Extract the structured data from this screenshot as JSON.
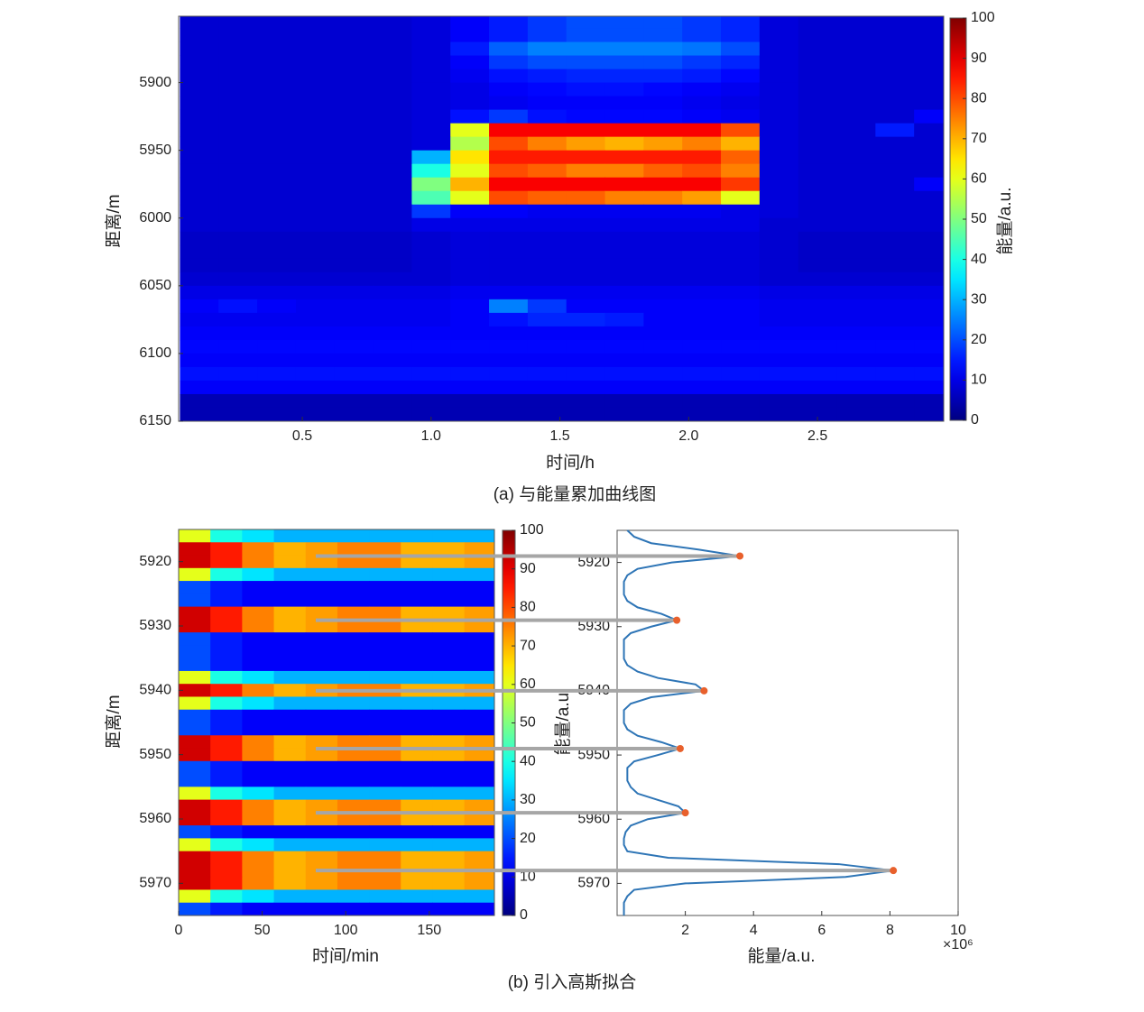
{
  "chart_data": [
    {
      "type": "heatmap",
      "caption": "(a) 与能量累加曲线图",
      "xlabel": "时间/h",
      "ylabel": "距离/m",
      "colormap": "jet",
      "xlim": [
        0.02,
        2.99
      ],
      "ylim": [
        5851,
        6150
      ],
      "y_reversed": true,
      "xticks": [
        0.5,
        {
          "value": 1,
          "label": "1.0"
        },
        1.5,
        {
          "value": 2,
          "label": "2.0"
        },
        2.5
      ],
      "yticks": [
        5900,
        5950,
        6000,
        6050,
        6100,
        6150
      ],
      "colorbar": {
        "label": "能量/a.u.",
        "lim": [
          0,
          100
        ],
        "ticks": [
          0,
          10,
          20,
          30,
          40,
          50,
          60,
          70,
          80,
          90,
          100
        ]
      },
      "x": [
        0.1,
        0.25,
        0.4,
        0.55,
        0.7,
        0.85,
        1.0,
        1.15,
        1.3,
        1.45,
        1.6,
        1.75,
        1.9,
        2.05,
        2.2,
        2.35,
        2.5,
        2.65,
        2.8,
        2.95
      ],
      "y": [
        5855,
        5865,
        5875,
        5885,
        5895,
        5905,
        5915,
        5925,
        5935,
        5945,
        5955,
        5965,
        5975,
        5985,
        5995,
        6005,
        6015,
        6025,
        6035,
        6045,
        6055,
        6065,
        6075,
        6085,
        6095,
        6105,
        6115,
        6125,
        6135,
        6145
      ],
      "z": [
        [
          8,
          8,
          8,
          8,
          8,
          8,
          9,
          12,
          15,
          18,
          20,
          20,
          20,
          18,
          16,
          9,
          8,
          8,
          8,
          8
        ],
        [
          8,
          8,
          8,
          8,
          8,
          8,
          9,
          12,
          15,
          18,
          20,
          20,
          20,
          18,
          16,
          9,
          8,
          8,
          8,
          8
        ],
        [
          8,
          8,
          8,
          8,
          8,
          8,
          9,
          15,
          22,
          25,
          25,
          25,
          25,
          24,
          20,
          9,
          8,
          8,
          8,
          8
        ],
        [
          8,
          8,
          8,
          8,
          8,
          8,
          9,
          12,
          18,
          20,
          20,
          20,
          20,
          18,
          16,
          9,
          8,
          8,
          8,
          8
        ],
        [
          8,
          8,
          8,
          8,
          8,
          8,
          9,
          11,
          14,
          15,
          16,
          16,
          16,
          15,
          13,
          9,
          8,
          8,
          8,
          8
        ],
        [
          8,
          8,
          8,
          8,
          8,
          8,
          9,
          10,
          12,
          13,
          14,
          14,
          13,
          12,
          11,
          9,
          8,
          8,
          8,
          8
        ],
        [
          8,
          8,
          8,
          8,
          8,
          8,
          9,
          10,
          11,
          12,
          12,
          12,
          12,
          11,
          10,
          9,
          8,
          8,
          8,
          8
        ],
        [
          8,
          8,
          8,
          8,
          8,
          8,
          9,
          14,
          18,
          14,
          13,
          13,
          13,
          12,
          11,
          9,
          8,
          8,
          8,
          12
        ],
        [
          8,
          8,
          8,
          8,
          8,
          8,
          9,
          60,
          88,
          88,
          88,
          88,
          88,
          88,
          80,
          9,
          8,
          8,
          15,
          8
        ],
        [
          8,
          8,
          8,
          8,
          8,
          8,
          9,
          55,
          80,
          75,
          72,
          70,
          72,
          75,
          70,
          9,
          8,
          8,
          8,
          8
        ],
        [
          8,
          8,
          8,
          8,
          8,
          8,
          30,
          65,
          85,
          85,
          85,
          85,
          85,
          85,
          78,
          9,
          8,
          8,
          8,
          8
        ],
        [
          8,
          8,
          8,
          8,
          8,
          8,
          40,
          60,
          80,
          78,
          75,
          75,
          78,
          80,
          75,
          9,
          8,
          8,
          8,
          8
        ],
        [
          8,
          8,
          8,
          8,
          8,
          8,
          50,
          70,
          88,
          88,
          88,
          88,
          88,
          88,
          82,
          9,
          8,
          8,
          8,
          12
        ],
        [
          8,
          8,
          8,
          8,
          8,
          8,
          45,
          60,
          80,
          78,
          78,
          75,
          75,
          72,
          60,
          9,
          8,
          8,
          8,
          8
        ],
        [
          8,
          8,
          8,
          8,
          8,
          8,
          18,
          12,
          12,
          11,
          11,
          11,
          11,
          11,
          10,
          9,
          8,
          8,
          8,
          8
        ],
        [
          8,
          8,
          8,
          8,
          8,
          8,
          10,
          10,
          10,
          10,
          10,
          10,
          10,
          10,
          10,
          8,
          8,
          8,
          8,
          8
        ],
        [
          7,
          7,
          7,
          7,
          7,
          7,
          8,
          9,
          9,
          9,
          9,
          9,
          9,
          9,
          9,
          8,
          7,
          7,
          7,
          7
        ],
        [
          7,
          7,
          7,
          7,
          7,
          7,
          8,
          9,
          9,
          9,
          9,
          9,
          9,
          9,
          9,
          8,
          7,
          7,
          7,
          7
        ],
        [
          7,
          7,
          7,
          7,
          7,
          7,
          8,
          9,
          9,
          9,
          9,
          9,
          9,
          9,
          9,
          8,
          7,
          7,
          7,
          7
        ],
        [
          8,
          8,
          8,
          8,
          8,
          8,
          8,
          9,
          9,
          9,
          9,
          9,
          9,
          9,
          9,
          8,
          8,
          8,
          8,
          8
        ],
        [
          10,
          10,
          10,
          10,
          10,
          10,
          10,
          11,
          11,
          11,
          11,
          11,
          11,
          11,
          11,
          10,
          10,
          10,
          10,
          10
        ],
        [
          12,
          14,
          12,
          11,
          11,
          11,
          11,
          12,
          25,
          18,
          12,
          12,
          12,
          12,
          12,
          11,
          11,
          11,
          11,
          11
        ],
        [
          11,
          11,
          11,
          11,
          11,
          11,
          11,
          12,
          14,
          16,
          16,
          15,
          12,
          12,
          12,
          11,
          11,
          11,
          11,
          11
        ],
        [
          12,
          12,
          12,
          12,
          12,
          12,
          12,
          12,
          12,
          12,
          12,
          12,
          12,
          12,
          12,
          12,
          12,
          12,
          12,
          12
        ],
        [
          13,
          13,
          13,
          13,
          13,
          13,
          13,
          13,
          13,
          13,
          13,
          13,
          13,
          13,
          13,
          13,
          13,
          13,
          13,
          13
        ],
        [
          12,
          12,
          12,
          12,
          12,
          12,
          12,
          12,
          12,
          12,
          12,
          12,
          12,
          12,
          12,
          12,
          12,
          12,
          12,
          12
        ],
        [
          14,
          14,
          14,
          14,
          14,
          14,
          14,
          14,
          14,
          14,
          14,
          14,
          14,
          14,
          14,
          14,
          14,
          14,
          14,
          14
        ],
        [
          12,
          12,
          12,
          12,
          12,
          12,
          12,
          12,
          12,
          12,
          12,
          12,
          12,
          12,
          12,
          12,
          12,
          12,
          12,
          12
        ],
        [
          5,
          5,
          5,
          5,
          5,
          5,
          5,
          5,
          5,
          5,
          5,
          5,
          5,
          5,
          5,
          5,
          5,
          5,
          5,
          5
        ],
        [
          5,
          5,
          5,
          5,
          5,
          5,
          5,
          5,
          5,
          5,
          5,
          5,
          5,
          5,
          5,
          5,
          5,
          5,
          5,
          5
        ]
      ]
    },
    {
      "type": "heatmap",
      "caption": "(b) 引入高斯拟合",
      "xlabel": "时间/min",
      "ylabel": "距离/m",
      "colormap": "jet",
      "xlim": [
        0,
        189
      ],
      "ylim": [
        5915,
        5975
      ],
      "y_reversed": true,
      "xticks": [
        0,
        50,
        100,
        150
      ],
      "yticks": [
        5920,
        5930,
        5940,
        5950,
        5960,
        5970
      ],
      "colorbar": {
        "label": "能量/a.u.",
        "lim": [
          0,
          100
        ],
        "ticks": [
          0,
          10,
          20,
          30,
          40,
          50,
          60,
          70,
          80,
          90,
          100
        ]
      },
      "x": [
        9.5,
        28.5,
        47.5,
        66.5,
        85.5,
        104.5,
        123.5,
        142.5,
        161.5,
        180.5
      ],
      "y": [
        5916,
        5918,
        5920,
        5922,
        5924,
        5926,
        5928,
        5930,
        5932,
        5934,
        5936,
        5938,
        5940,
        5942,
        5944,
        5946,
        5948,
        5950,
        5952,
        5954,
        5956,
        5958,
        5960,
        5962,
        5964,
        5966,
        5968,
        5970,
        5972,
        5974
      ],
      "z": [
        [
          60,
          40,
          35,
          30,
          30,
          30,
          30,
          30,
          30,
          30
        ],
        [
          92,
          85,
          75,
          70,
          72,
          75,
          75,
          70,
          70,
          72
        ],
        [
          92,
          85,
          75,
          70,
          72,
          75,
          75,
          70,
          70,
          72
        ],
        [
          60,
          40,
          35,
          30,
          30,
          30,
          30,
          30,
          30,
          30
        ],
        [
          20,
          15,
          12,
          12,
          12,
          12,
          12,
          12,
          12,
          12
        ],
        [
          20,
          15,
          12,
          12,
          12,
          12,
          12,
          12,
          12,
          12
        ],
        [
          92,
          85,
          75,
          70,
          72,
          75,
          75,
          70,
          70,
          72
        ],
        [
          92,
          85,
          75,
          70,
          72,
          75,
          75,
          70,
          70,
          72
        ],
        [
          20,
          15,
          12,
          12,
          12,
          12,
          12,
          12,
          12,
          12
        ],
        [
          20,
          15,
          12,
          12,
          12,
          12,
          12,
          12,
          12,
          12
        ],
        [
          20,
          15,
          12,
          12,
          12,
          12,
          12,
          12,
          12,
          12
        ],
        [
          60,
          40,
          35,
          30,
          30,
          30,
          30,
          30,
          30,
          30
        ],
        [
          92,
          85,
          75,
          70,
          72,
          75,
          75,
          70,
          70,
          72
        ],
        [
          60,
          40,
          35,
          30,
          30,
          30,
          30,
          30,
          30,
          30
        ],
        [
          20,
          15,
          12,
          12,
          12,
          12,
          12,
          12,
          12,
          12
        ],
        [
          20,
          15,
          12,
          12,
          12,
          12,
          12,
          12,
          12,
          12
        ],
        [
          92,
          85,
          75,
          70,
          72,
          75,
          75,
          70,
          70,
          72
        ],
        [
          92,
          85,
          75,
          70,
          72,
          75,
          75,
          70,
          70,
          72
        ],
        [
          20,
          15,
          12,
          12,
          12,
          12,
          12,
          12,
          12,
          12
        ],
        [
          20,
          15,
          12,
          12,
          12,
          12,
          12,
          12,
          12,
          12
        ],
        [
          60,
          40,
          35,
          30,
          30,
          30,
          30,
          30,
          30,
          30
        ],
        [
          92,
          85,
          75,
          70,
          72,
          75,
          75,
          70,
          70,
          72
        ],
        [
          92,
          85,
          75,
          70,
          72,
          75,
          75,
          70,
          70,
          72
        ],
        [
          20,
          15,
          12,
          12,
          12,
          12,
          12,
          12,
          12,
          12
        ],
        [
          60,
          40,
          35,
          30,
          30,
          30,
          30,
          30,
          30,
          30
        ],
        [
          92,
          85,
          75,
          70,
          72,
          75,
          75,
          70,
          70,
          72
        ],
        [
          92,
          85,
          75,
          70,
          72,
          75,
          75,
          70,
          70,
          72
        ],
        [
          92,
          85,
          75,
          70,
          72,
          75,
          75,
          70,
          70,
          72
        ],
        [
          60,
          40,
          35,
          30,
          30,
          30,
          30,
          30,
          30,
          30
        ],
        [
          20,
          15,
          12,
          12,
          12,
          12,
          12,
          12,
          12,
          12
        ]
      ]
    },
    {
      "type": "line",
      "xlabel": "能量/a.u.",
      "x_exponent": "×10⁶",
      "color": "#2e75b6",
      "xlim": [
        0,
        10
      ],
      "xticks": [
        2,
        4,
        6,
        8,
        10
      ],
      "ylim": [
        5915,
        5975
      ],
      "y_reversed": true,
      "yticks": [
        5920,
        5930,
        5940,
        5950,
        5960,
        5970
      ],
      "y": [
        5915,
        5916,
        5917,
        5918,
        5919,
        5920,
        5921,
        5922,
        5923,
        5924,
        5925,
        5926,
        5927,
        5928,
        5929,
        5930,
        5931,
        5932,
        5933,
        5934,
        5935,
        5936,
        5937,
        5938,
        5939,
        5940,
        5941,
        5942,
        5943,
        5944,
        5945,
        5946,
        5947,
        5948,
        5949,
        5950,
        5951,
        5952,
        5953,
        5954,
        5955,
        5956,
        5957,
        5958,
        5959,
        5960,
        5961,
        5962,
        5963,
        5964,
        5965,
        5966,
        5967,
        5968,
        5969,
        5970,
        5971,
        5972,
        5973,
        5974,
        5975
      ],
      "values": [
        0.3,
        0.5,
        1.0,
        2.4,
        3.6,
        1.6,
        0.6,
        0.3,
        0.2,
        0.2,
        0.2,
        0.3,
        0.6,
        1.3,
        1.75,
        1.0,
        0.4,
        0.2,
        0.2,
        0.2,
        0.2,
        0.3,
        0.6,
        1.2,
        2.3,
        2.55,
        1.0,
        0.4,
        0.2,
        0.2,
        0.2,
        0.3,
        0.6,
        1.3,
        1.85,
        1.2,
        0.5,
        0.3,
        0.3,
        0.3,
        0.4,
        0.6,
        1.2,
        1.8,
        2.0,
        0.9,
        0.4,
        0.25,
        0.2,
        0.2,
        0.3,
        1.5,
        6.5,
        8.1,
        6.7,
        2.0,
        0.5,
        0.3,
        0.2,
        0.2,
        0.2
      ],
      "peaks": {
        "color": "#e8602c",
        "y": [
          5919,
          5929,
          5940,
          5949,
          5959,
          5968
        ],
        "values": [
          3.6,
          1.75,
          2.55,
          1.85,
          2.0,
          8.1
        ]
      }
    }
  ]
}
